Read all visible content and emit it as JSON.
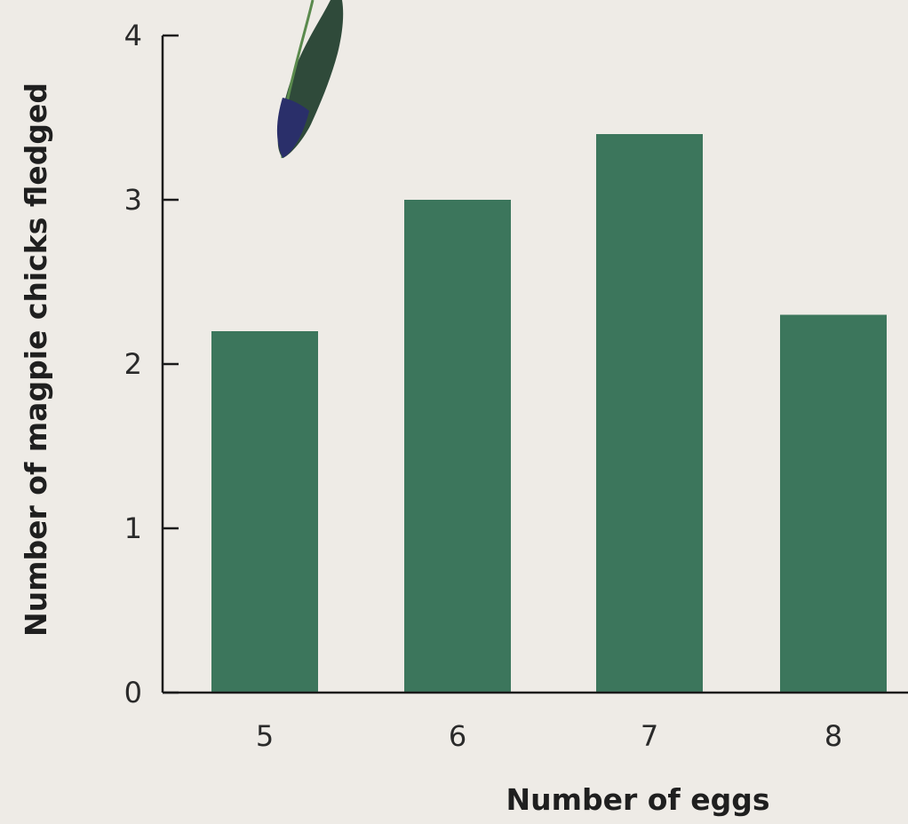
{
  "chart_data": {
    "type": "bar",
    "title": "",
    "xlabel": "Number of eggs",
    "ylabel": "Number of magpie chicks fledged",
    "categories": [
      "5",
      "6",
      "7",
      "8"
    ],
    "values": [
      2.2,
      3.0,
      3.4,
      2.3
    ],
    "ylim": [
      0,
      4
    ],
    "yticks": [
      "0",
      "1",
      "2",
      "3",
      "4"
    ],
    "grid": false,
    "bar_color": "#3c765c",
    "axis_color": "#1a1a1a"
  }
}
